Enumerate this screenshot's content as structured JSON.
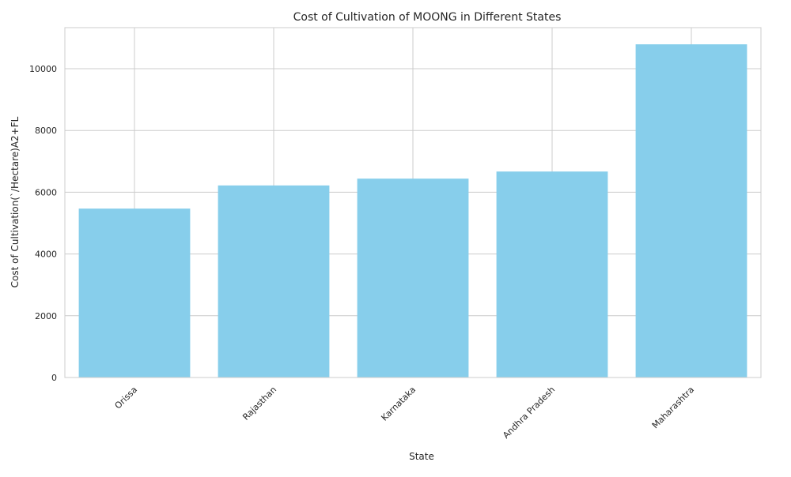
{
  "chart_data": {
    "type": "bar",
    "title": "Cost of Cultivation of MOONG in Different States",
    "xlabel": "State",
    "ylabel": "Cost of Cultivation(`/Hectare)A2+FL",
    "categories": [
      "Orissa",
      "Rajasthan",
      "Karnataka",
      "Andhra Pradesh",
      "Maharashtra"
    ],
    "values": [
      5470,
      6220,
      6440,
      6670,
      10790
    ],
    "ylim": [
      0,
      11330
    ],
    "yticks": [
      0,
      2000,
      4000,
      6000,
      8000,
      10000
    ],
    "grid": true,
    "bar_color": "#87CEEB",
    "grid_color": "#cccccc"
  }
}
